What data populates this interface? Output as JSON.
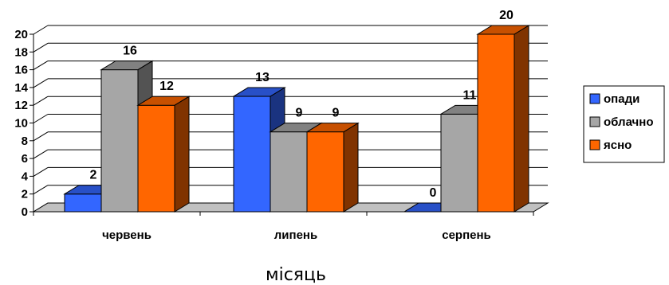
{
  "chart_data": {
    "type": "bar",
    "style": "3d-clustered-column",
    "categories": [
      "червень",
      "липень",
      "серпень"
    ],
    "series": [
      {
        "name": "опади",
        "values": [
          2,
          13,
          0
        ],
        "color": "#3366ff"
      },
      {
        "name": "облачно",
        "values": [
          16,
          9,
          11
        ],
        "color": "#a6a6a6"
      },
      {
        "name": "ясно",
        "values": [
          12,
          9,
          20
        ],
        "color": "#ff6600"
      }
    ],
    "xlabel": "місяць",
    "ylabel": "",
    "ylim": [
      0,
      20
    ],
    "yticks": [
      0,
      2,
      4,
      6,
      8,
      10,
      12,
      14,
      16,
      18,
      20
    ],
    "grid": true,
    "legend": "right"
  }
}
